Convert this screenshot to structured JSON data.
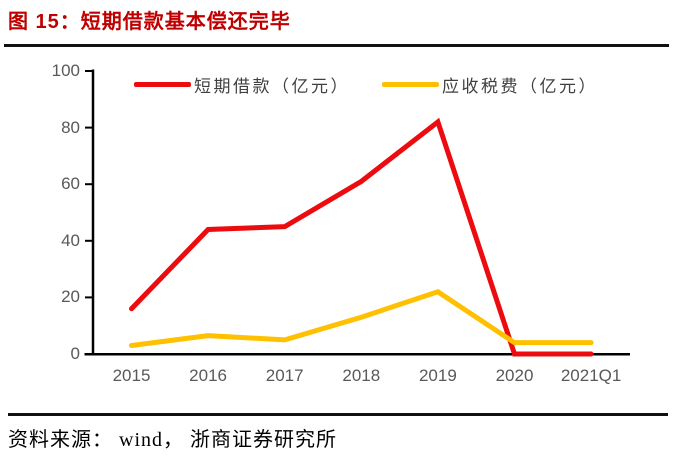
{
  "header": {
    "title": "图 15：短期借款基本偿还完毕"
  },
  "footer": {
    "source": "资料来源： wind， 浙商证券研究所"
  },
  "colors": {
    "title_red": "#C00000",
    "series_red": "#EC0C10",
    "series_gold": "#FFC000",
    "axis_line": "#000000",
    "axis_text": "#595959"
  },
  "chart_data": {
    "type": "line",
    "title": "短期借款基本偿还完毕",
    "categories": [
      "2015",
      "2016",
      "2017",
      "2018",
      "2019",
      "2020",
      "2021Q1"
    ],
    "series": [
      {
        "name": "短期借款（亿元）",
        "color": "#EC0C10",
        "values": [
          16,
          44,
          45,
          61,
          82,
          0,
          0
        ]
      },
      {
        "name": "应收税费（亿元）",
        "color": "#FFC000",
        "values": [
          3,
          6.5,
          5,
          13,
          22,
          4,
          4
        ]
      }
    ],
    "xlabel": "",
    "ylabel": "",
    "ylim": [
      0,
      100
    ],
    "yticks": [
      0,
      20,
      40,
      60,
      80,
      100
    ],
    "legend_position": "top",
    "grid": false
  }
}
